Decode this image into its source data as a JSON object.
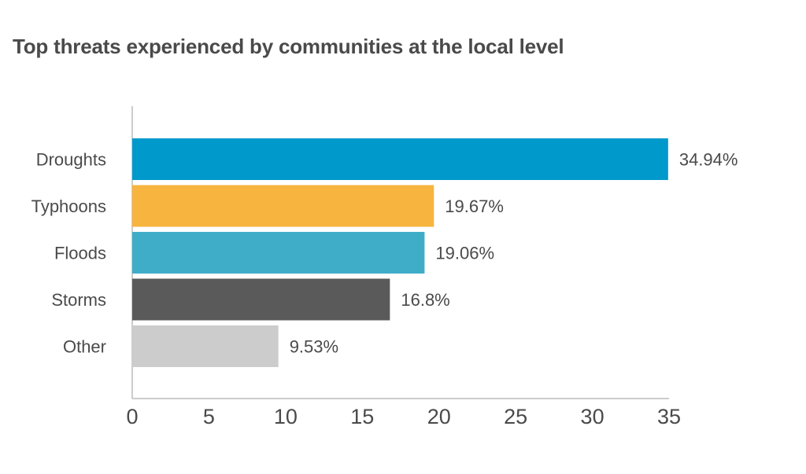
{
  "chart_data": {
    "type": "bar",
    "orientation": "horizontal",
    "title": "Top threats experienced by communities at the local level",
    "xlabel": "",
    "ylabel": "",
    "categories": [
      "Droughts",
      "Typhoons",
      "Floods",
      "Storms",
      "Other"
    ],
    "values": [
      34.94,
      19.67,
      19.06,
      16.8,
      9.53
    ],
    "value_labels": [
      "34.94%",
      "19.67%",
      "19.06%",
      "16.8%",
      "9.53%"
    ],
    "colors": [
      "#0099cc",
      "#f7b43f",
      "#3fadc8",
      "#5a5a5a",
      "#cccccc"
    ],
    "xlim": [
      0,
      35
    ],
    "xticks": [
      0,
      5,
      10,
      15,
      20,
      25,
      30,
      35
    ],
    "xtick_labels": [
      "0",
      "5",
      "10",
      "15",
      "20",
      "25",
      "30",
      "35"
    ],
    "grid": false,
    "legend": "none"
  }
}
